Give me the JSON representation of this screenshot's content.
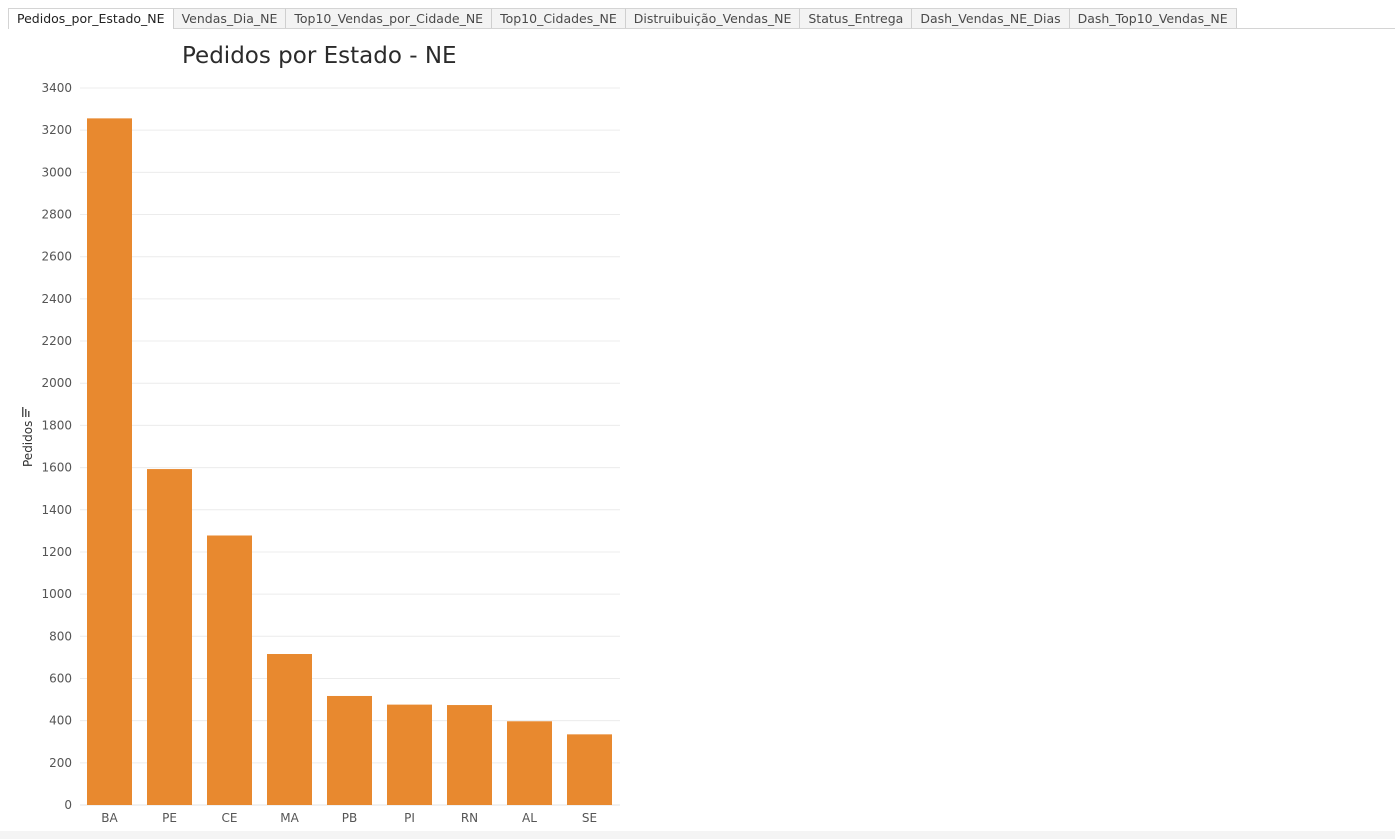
{
  "tabs": [
    {
      "label": "Pedidos_por_Estado_NE",
      "active": true
    },
    {
      "label": "Vendas_Dia_NE",
      "active": false
    },
    {
      "label": "Top10_Vendas_por_Cidade_NE",
      "active": false
    },
    {
      "label": "Top10_Cidades_NE",
      "active": false
    },
    {
      "label": "Distruibuição_Vendas_NE",
      "active": false
    },
    {
      "label": "Status_Entrega",
      "active": false
    },
    {
      "label": "Dash_Vendas_NE_Dias",
      "active": false
    },
    {
      "label": "Dash_Top10_Vendas_NE",
      "active": false
    }
  ],
  "chart_data": {
    "type": "bar",
    "title": "Pedidos por Estado - NE",
    "xlabel": "",
    "ylabel": "Pedidos",
    "categories": [
      "BA",
      "PE",
      "CE",
      "MA",
      "PB",
      "PI",
      "RN",
      "AL",
      "SE"
    ],
    "values": [
      3256,
      1593,
      1278,
      716,
      517,
      476,
      474,
      397,
      335
    ],
    "ylim": [
      0,
      3400
    ],
    "yticks": [
      0,
      200,
      400,
      600,
      800,
      1000,
      1200,
      1400,
      1600,
      1800,
      2000,
      2200,
      2400,
      2600,
      2800,
      3000,
      3200,
      3400
    ],
    "grid": true,
    "bar_color": "#E8892F",
    "sorted": "descending"
  }
}
